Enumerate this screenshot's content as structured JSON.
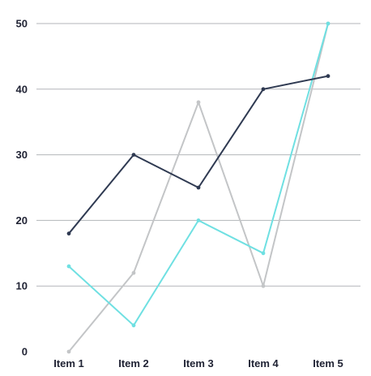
{
  "chart_data": {
    "type": "line",
    "title": "",
    "xlabel": "",
    "ylabel": "",
    "categories": [
      "Item 1",
      "Item 2",
      "Item 3",
      "Item 4",
      "Item 5"
    ],
    "ylim": [
      0,
      50
    ],
    "yticks": [
      0,
      10,
      20,
      30,
      40,
      50
    ],
    "grid": true,
    "legend": "none",
    "series": [
      {
        "values": [
          18,
          30,
          25,
          40,
          42
        ],
        "color": "#2f3a52"
      },
      {
        "values": [
          0,
          12,
          38,
          10,
          50
        ],
        "color": "#c3c5c7"
      },
      {
        "values": [
          13,
          4,
          20,
          15,
          50
        ],
        "color": "#6fe0e2"
      }
    ]
  }
}
